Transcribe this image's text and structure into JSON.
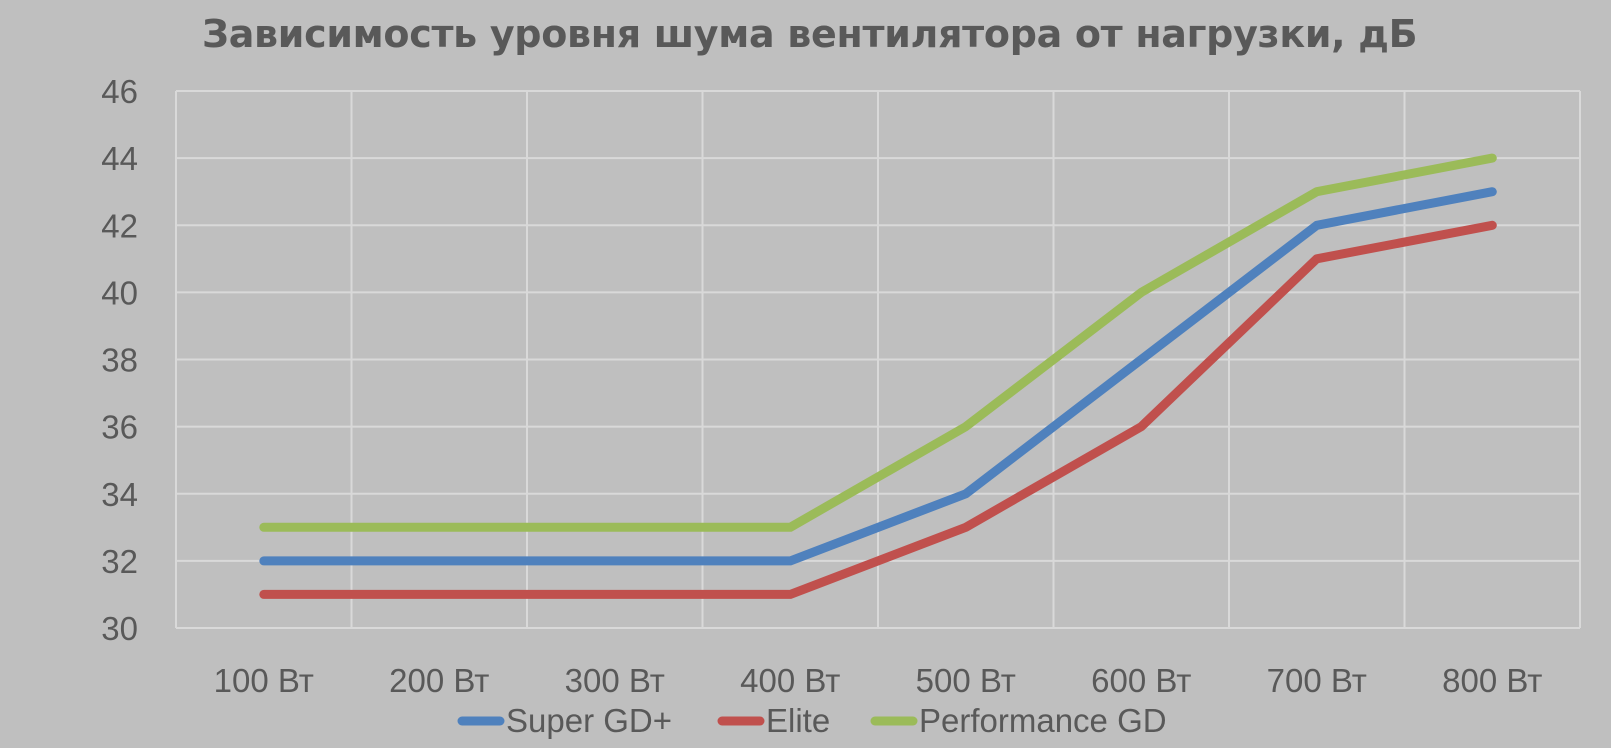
{
  "chart_data": {
    "type": "line",
    "title": "Зависимость уровня шума вентилятора от нагрузки, дБ",
    "categories": [
      "100 Вт",
      "200 Вт",
      "300 Вт",
      "400 Вт",
      "500 Вт",
      "600 Вт",
      "700 Вт",
      "800 Вт"
    ],
    "series": [
      {
        "name": "Super GD+",
        "color": "#4f81bd",
        "values": [
          32,
          32,
          32,
          32,
          34,
          38,
          42,
          43
        ]
      },
      {
        "name": "Elite",
        "color": "#c0504d",
        "values": [
          31,
          31,
          31,
          31,
          33,
          36,
          41,
          42
        ]
      },
      {
        "name": "Performance GD",
        "color": "#9bbb59",
        "values": [
          33,
          33,
          33,
          33,
          36,
          40,
          43,
          44
        ]
      }
    ],
    "ylim": [
      30,
      46
    ],
    "yticks": [
      30,
      32,
      34,
      36,
      38,
      40,
      42,
      44,
      46
    ],
    "xlabel": "",
    "ylabel": "",
    "grid": true,
    "legend_position": "bottom",
    "background": "#bfbfbf",
    "gridline_color": "#d9d9d9"
  }
}
